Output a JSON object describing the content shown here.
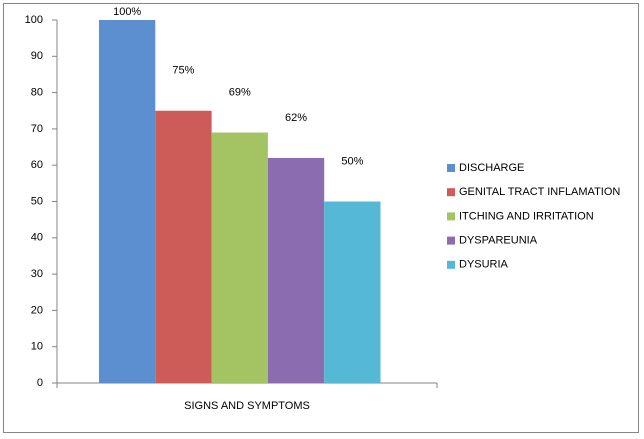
{
  "chart_data": {
    "type": "bar",
    "categories": [
      "SIGNS AND SYMPTOMS"
    ],
    "series": [
      {
        "name": "DISCHARGE",
        "color": "#5b8fd0",
        "values": [
          100
        ],
        "value_labels": [
          "100%"
        ]
      },
      {
        "name": "GENITAL TRACT INFLAMATION",
        "color": "#cd5b57",
        "values": [
          75
        ],
        "value_labels": [
          "75%"
        ]
      },
      {
        "name": "ITCHING  AND IRRITATION",
        "color": "#a4c464",
        "values": [
          69
        ],
        "value_labels": [
          "69%"
        ]
      },
      {
        "name": "DYSPAREUNIA",
        "color": "#8c6cb0",
        "values": [
          62
        ],
        "value_labels": [
          "62%"
        ]
      },
      {
        "name": "DYSURIA",
        "color": "#55b8d4",
        "values": [
          50
        ],
        "value_labels": [
          "50%"
        ]
      }
    ],
    "ylim": [
      0,
      100
    ],
    "yticks": [
      0,
      10,
      20,
      30,
      40,
      50,
      60,
      70,
      80,
      90,
      100
    ],
    "grid": false,
    "legend": "right"
  }
}
